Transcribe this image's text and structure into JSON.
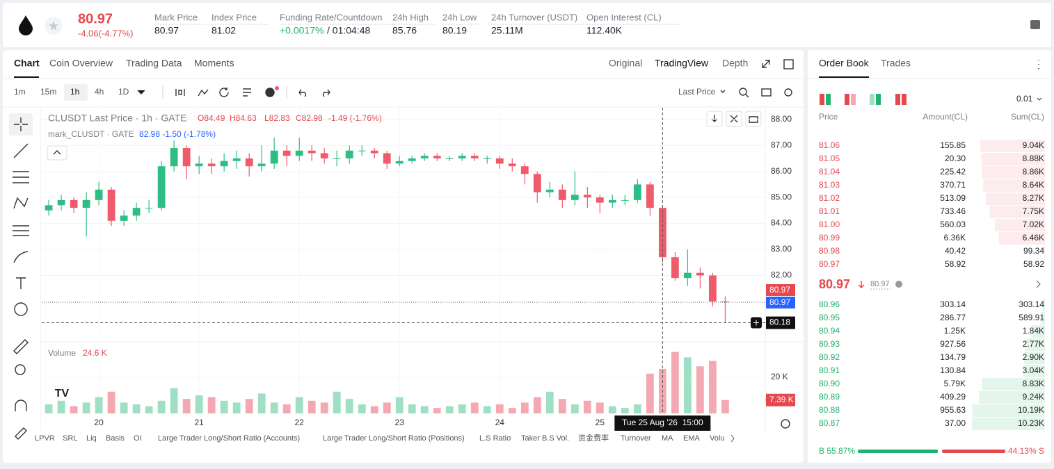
{
  "header": {
    "price": "80.97",
    "change": "-4.06(-4.77%)",
    "stats": [
      {
        "label": "Mark Price",
        "value": "80.97"
      },
      {
        "label": "Index Price",
        "value": "81.02"
      },
      {
        "label": "Funding Rate/Countdown",
        "value": "+0.0017%",
        "countdown": "/ 01:04:48"
      },
      {
        "label": "24h High",
        "value": "85.76"
      },
      {
        "label": "24h Low",
        "value": "80.19"
      },
      {
        "label": "24h Turnover (USDT)",
        "value": "25.11M"
      },
      {
        "label": "Open Interest (CL)",
        "value": "112.40K"
      }
    ]
  },
  "chart_tabs": [
    "Chart",
    "Coin Overview",
    "Trading Data",
    "Moments"
  ],
  "view_tabs": [
    "Original",
    "TradingView",
    "Depth"
  ],
  "intervals": [
    "1m",
    "15m",
    "1h",
    "4h",
    "1D"
  ],
  "price_source": "Last Price",
  "chart_data": {
    "type": "candlestick",
    "title": "CLUSDT Last Price · 1h · GATE",
    "ohlc_legend": [
      "O84.49",
      "H84.63",
      "L82.83",
      "C82.98",
      "-1.49 (-1.76%)"
    ],
    "mark_legend": "mark_CLUSDT · GATE",
    "mark_values": "82.98 -1.50 (-1.78%)",
    "x": [
      19.5,
      19.625,
      19.75,
      19.875,
      20,
      20.125,
      20.25,
      20.375,
      20.5,
      20.625,
      20.75,
      20.875,
      21,
      21.125,
      21.25,
      21.375,
      21.5,
      21.625,
      21.75,
      21.875,
      22,
      22.125,
      22.25,
      22.375,
      22.5,
      22.625,
      22.75,
      22.875,
      23,
      23.125,
      23.25,
      23.375,
      23.5,
      23.625,
      23.75,
      23.875,
      24,
      24.125,
      24.25,
      24.375,
      24.5,
      24.625,
      24.75,
      24.875,
      25,
      25.125,
      25.25,
      25.375,
      25.5,
      25.625,
      25.75,
      25.875,
      26,
      26.125,
      26.25
    ],
    "open": [
      84.5,
      84.7,
      84.9,
      84.6,
      84.9,
      85.3,
      84.1,
      84.3,
      84.6,
      84.6,
      86.2,
      86.9,
      86.2,
      86.3,
      86.2,
      86.4,
      86.5,
      86.2,
      86.3,
      86.8,
      86.6,
      86.8,
      86.7,
      86.5,
      86.5,
      86.8,
      86.8,
      86.7,
      86.3,
      86.4,
      86.5,
      86.6,
      86.5,
      86.5,
      86.6,
      86.5,
      86.5,
      86.3,
      86.2,
      85.9,
      85.2,
      85.3,
      84.9,
      85.1,
      85.0,
      84.8,
      84.9,
      84.9,
      85.5,
      84.6,
      82.7,
      81.9,
      82.1,
      82.0,
      81.0
    ],
    "high": [
      84.9,
      85.1,
      85.0,
      85.2,
      85.6,
      85.4,
      84.5,
      84.8,
      84.9,
      86.4,
      87.2,
      87.0,
      86.6,
      86.5,
      86.7,
      86.8,
      86.7,
      87.0,
      87.3,
      87.0,
      87.3,
      87.0,
      86.9,
      86.8,
      87.0,
      87.0,
      86.9,
      86.8,
      86.6,
      86.6,
      86.7,
      86.7,
      86.6,
      86.7,
      86.7,
      86.6,
      86.6,
      86.5,
      86.3,
      86.0,
      85.6,
      85.5,
      86.0,
      85.4,
      85.1,
      85.1,
      85.1,
      85.7,
      85.6,
      84.7,
      82.9,
      83.0,
      82.3,
      82.1,
      81.2
    ],
    "low": [
      84.3,
      84.5,
      84.4,
      83.5,
      84.7,
      83.9,
      83.9,
      84.1,
      84.4,
      84.5,
      86.0,
      85.7,
      85.9,
      85.9,
      86.0,
      86.1,
      85.8,
      86.0,
      86.1,
      86.2,
      86.4,
      86.4,
      86.3,
      86.2,
      86.3,
      86.6,
      86.5,
      86.1,
      86.2,
      86.3,
      86.4,
      86.4,
      86.4,
      86.4,
      86.4,
      86.3,
      86.1,
      86.0,
      85.5,
      84.8,
      85.0,
      84.6,
      84.7,
      84.6,
      84.4,
      84.6,
      84.7,
      84.8,
      84.3,
      82.5,
      81.8,
      81.6,
      81.5,
      80.8,
      80.2
    ],
    "close": [
      84.7,
      84.9,
      84.6,
      84.9,
      85.3,
      84.1,
      84.3,
      84.6,
      84.6,
      86.2,
      86.9,
      86.2,
      86.3,
      86.2,
      86.4,
      86.5,
      86.2,
      86.3,
      86.8,
      86.6,
      86.8,
      86.7,
      86.5,
      86.5,
      86.8,
      86.8,
      86.7,
      86.3,
      86.4,
      86.5,
      86.6,
      86.5,
      86.5,
      86.6,
      86.5,
      86.5,
      86.3,
      86.2,
      85.9,
      85.2,
      85.3,
      84.9,
      85.1,
      85.0,
      84.8,
      84.9,
      84.9,
      85.5,
      84.6,
      82.7,
      81.9,
      82.1,
      82.0,
      81.0,
      80.97
    ],
    "xlim": [
      19.43,
      26.65
    ],
    "xticks": [
      20,
      21,
      22,
      23,
      24,
      25
    ],
    "ylim": [
      79.5,
      88.45
    ],
    "yticks": [
      {
        "value": 82,
        "label": "82.00"
      },
      {
        "value": 83,
        "label": "83.00"
      },
      {
        "value": 84,
        "label": "84.00"
      },
      {
        "value": 85,
        "label": "85.00"
      },
      {
        "value": 86,
        "label": "86.00"
      },
      {
        "value": 87,
        "label": "87.00"
      },
      {
        "value": 88,
        "label": "88.00"
      }
    ],
    "up_color": "#2ebd85",
    "down_color": "#ef5b6b",
    "last_price": 80.97,
    "mark_price": 80.97,
    "crosshair_price": 80.18,
    "crosshair_x": 25.625,
    "crosshair_label": "Tue 25 Aug '26  15:00",
    "volume": {
      "label": "Volume",
      "legend_value": "24.6 K",
      "values": [
        5,
        7,
        4,
        6,
        9,
        12,
        6,
        5,
        4,
        7,
        14,
        8,
        10,
        9,
        7,
        6,
        8,
        11,
        6,
        5,
        9,
        7,
        6,
        12,
        8,
        5,
        4,
        6,
        9,
        5,
        4,
        3,
        4,
        5,
        6,
        4,
        5,
        3,
        6,
        9,
        12,
        8,
        5,
        7,
        6,
        4,
        3,
        5,
        22,
        24.6,
        34,
        31,
        26,
        29,
        7.39
      ],
      "ylim": [
        0,
        38
      ],
      "yticks": [
        {
          "value": 20,
          "label": "20 K"
        }
      ],
      "last": 7.39,
      "last_label": "7.39 K",
      "up_color": "#9fe0c4",
      "down_color": "#f4a8b1"
    }
  },
  "indicators": [
    "LPVR",
    "SRL",
    "Liq",
    "Basis",
    "OI",
    "Large Trader Long/Short Ratio (Accounts)",
    "Large Trader Long/Short Ratio (Positions)",
    "L.S Ratio",
    "Taker B.S Vol.",
    "资金费率",
    "Turnover",
    "MA",
    "EMA",
    "Volu"
  ],
  "order_book": {
    "tabs": [
      "Order Book",
      "Trades"
    ],
    "precision": "0.01",
    "columns": [
      "Price",
      "Amount(CL)",
      "Sum(CL)"
    ],
    "asks": {
      "price": [
        "81.06",
        "81.05",
        "81.04",
        "81.03",
        "81.02",
        "81.01",
        "81.00",
        "80.99",
        "80.98",
        "80.97"
      ],
      "amount": [
        "155.85",
        "20.30",
        "225.42",
        "370.71",
        "513.09",
        "733.46",
        "560.03",
        "6.36K",
        "40.42",
        "58.92"
      ],
      "sum": [
        9040,
        8880,
        8860,
        8640,
        8270,
        7750,
        7020,
        6460,
        99.34,
        58.92
      ],
      "sum_labels": [
        "9.04K",
        "8.88K",
        "8.86K",
        "8.64K",
        "8.27K",
        "7.75K",
        "7.02K",
        "6.46K",
        "99.34",
        "58.92"
      ]
    },
    "mid_price": "80.97",
    "mid_mark": "80.97",
    "bids": {
      "price": [
        "80.96",
        "80.95",
        "80.94",
        "80.93",
        "80.92",
        "80.91",
        "80.90",
        "80.89",
        "80.88",
        "80.87"
      ],
      "amount": [
        "303.14",
        "286.77",
        "1.25K",
        "927.56",
        "134.79",
        "130.84",
        "5.79K",
        "409.29",
        "955.63",
        "37.00"
      ],
      "sum": [
        303.14,
        589.91,
        1840,
        2770,
        2900,
        3040,
        8830,
        9240,
        10190,
        10230
      ],
      "sum_labels": [
        "303.14",
        "589.91",
        "1.84K",
        "2.77K",
        "2.90K",
        "3.04K",
        "8.83K",
        "9.24K",
        "10.19K",
        "10.23K"
      ]
    },
    "ratio": {
      "values": [
        55.87,
        44.13
      ],
      "value_labels": [
        "B 55.87%",
        "44.13% S"
      ]
    }
  }
}
